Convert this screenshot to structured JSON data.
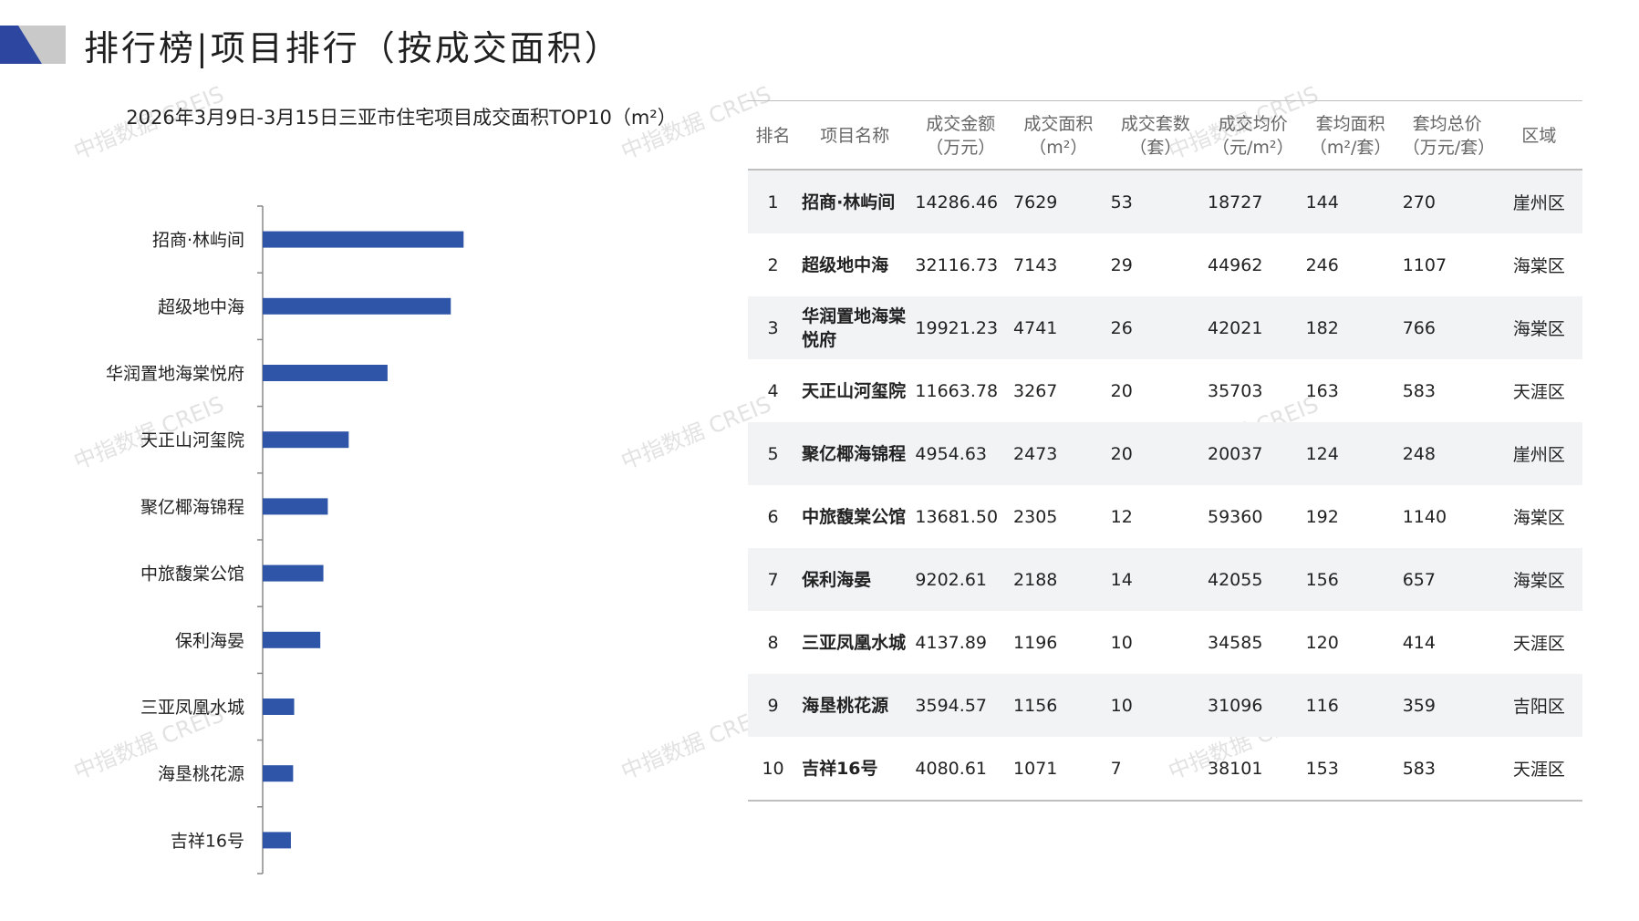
{
  "page_title": "排行榜|项目排行（按成交面积）",
  "brand_colors": {
    "logo_dark": "#2d47a0",
    "logo_light": "#c9c9c9",
    "bar": "#2f55a8"
  },
  "watermark": "中指数据 CREIS",
  "chart_data": {
    "type": "bar",
    "orientation": "horizontal",
    "title": "2026年3月9日-3月15日三亚市住宅项目成交面积TOP10（m²）",
    "categories": [
      "招商·林屿间",
      "超级地中海",
      "华润置地海棠悦府",
      "天正山河玺院",
      "聚亿椰海锦程",
      "中旅馥棠公馆",
      "保利海晏",
      "三亚凤凰水城",
      "海垦桃花源",
      "吉祥16号"
    ],
    "values": [
      7629,
      7143,
      4741,
      3267,
      2473,
      2305,
      2188,
      1196,
      1156,
      1071
    ],
    "xlim": [
      0,
      16000
    ],
    "grid": false,
    "legend": "none"
  },
  "table": {
    "headers": [
      [
        "排名"
      ],
      [
        "项目名称"
      ],
      [
        "成交金额",
        "（万元）"
      ],
      [
        "成交面积",
        "（m²）"
      ],
      [
        "成交套数",
        "（套）"
      ],
      [
        "成交均价",
        "（元/m²）"
      ],
      [
        "套均面积",
        "（m²/套）"
      ],
      [
        "套均总价",
        "（万元/套）"
      ],
      [
        "区域"
      ]
    ],
    "rows": [
      [
        "1",
        "招商·林屿间",
        "14286.46",
        "7629",
        "53",
        "18727",
        "144",
        "270",
        "崖州区"
      ],
      [
        "2",
        "超级地中海",
        "32116.73",
        "7143",
        "29",
        "44962",
        "246",
        "1107",
        "海棠区"
      ],
      [
        "3",
        "华润置地海棠悦府",
        "19921.23",
        "4741",
        "26",
        "42021",
        "182",
        "766",
        "海棠区"
      ],
      [
        "4",
        "天正山河玺院",
        "11663.78",
        "3267",
        "20",
        "35703",
        "163",
        "583",
        "天涯区"
      ],
      [
        "5",
        "聚亿椰海锦程",
        "4954.63",
        "2473",
        "20",
        "20037",
        "124",
        "248",
        "崖州区"
      ],
      [
        "6",
        "中旅馥棠公馆",
        "13681.50",
        "2305",
        "12",
        "59360",
        "192",
        "1140",
        "海棠区"
      ],
      [
        "7",
        "保利海晏",
        "9202.61",
        "2188",
        "14",
        "42055",
        "156",
        "657",
        "海棠区"
      ],
      [
        "8",
        "三亚凤凰水城",
        "4137.89",
        "1196",
        "10",
        "34585",
        "120",
        "414",
        "天涯区"
      ],
      [
        "9",
        "海垦桃花源",
        "3594.57",
        "1156",
        "10",
        "31096",
        "116",
        "359",
        "吉阳区"
      ],
      [
        "10",
        "吉祥16号",
        "4080.61",
        "1071",
        "7",
        "38101",
        "153",
        "583",
        "天涯区"
      ]
    ]
  }
}
